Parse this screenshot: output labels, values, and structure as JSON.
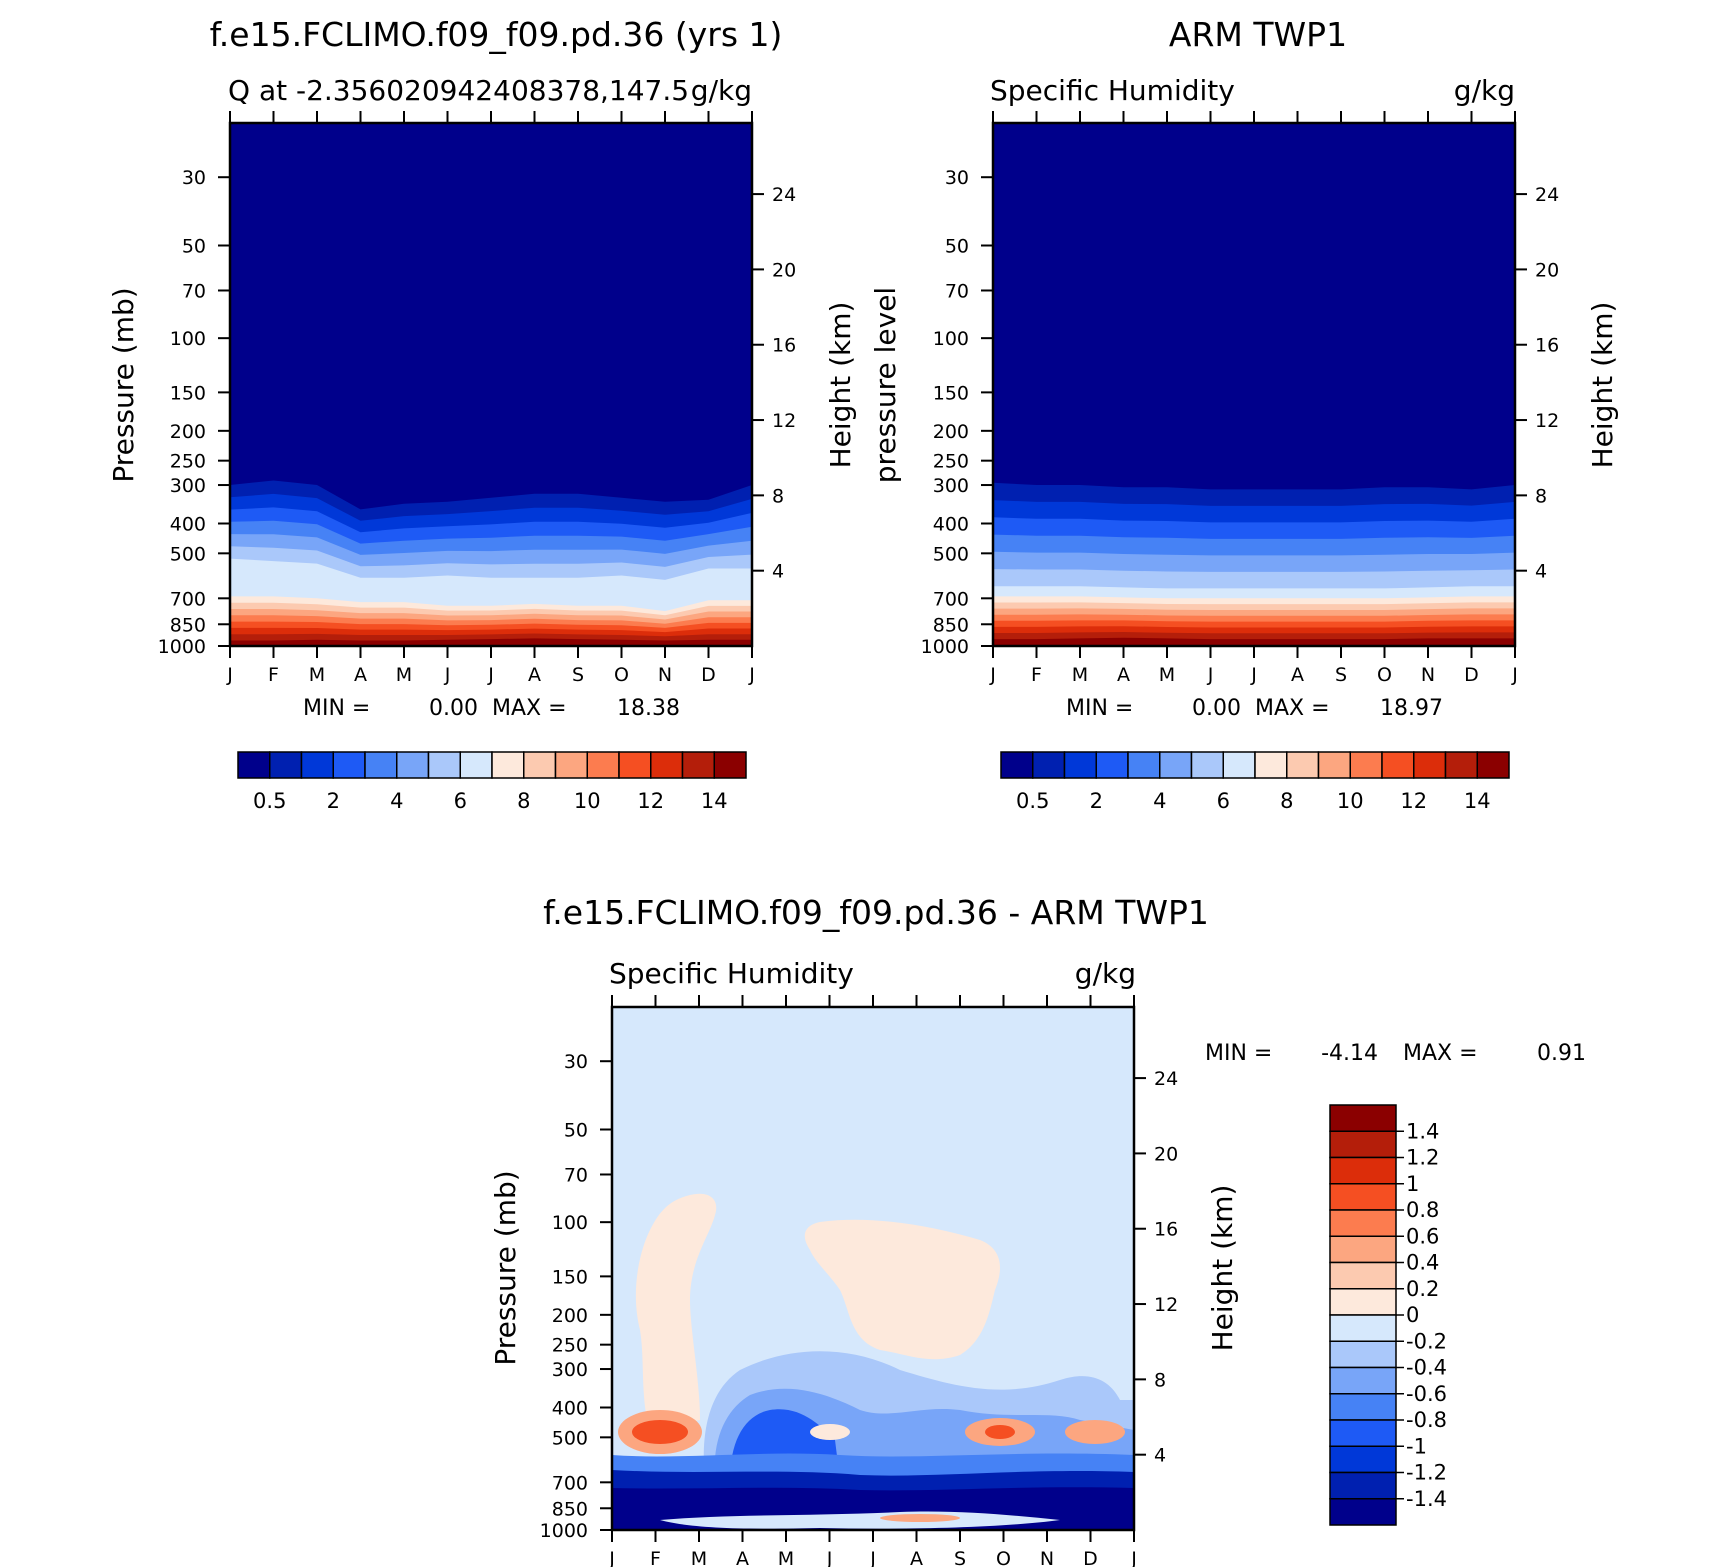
{
  "chart_data": [
    {
      "id": "model",
      "type": "heatmap",
      "title": "f.e15.FCLIMO.f09_f09.pd.36 (yrs 1)",
      "subtitle_left": "Q at -2.356020942408378,147.5",
      "subtitle_right": "g/kg",
      "ylabel": "Pressure (mb)",
      "y2label": "Height (km)",
      "x_ticks": [
        "J",
        "F",
        "M",
        "A",
        "M",
        "J",
        "J",
        "A",
        "S",
        "O",
        "N",
        "D",
        "J"
      ],
      "p_ticks": [
        "30",
        "50",
        "70",
        "100",
        "150",
        "200",
        "250",
        "300",
        "400",
        "500",
        "700",
        "850",
        "1000"
      ],
      "p_values": [
        30,
        50,
        70,
        100,
        150,
        200,
        250,
        300,
        400,
        500,
        700,
        850,
        1000
      ],
      "p_range": [
        20,
        1000
      ],
      "h_ticks": [
        "24",
        "20",
        "16",
        "12",
        "8",
        "4"
      ],
      "h_values": [
        24,
        20,
        16,
        12,
        8,
        4
      ],
      "min_label": "MIN =",
      "min_value": "0.00",
      "max_label": "MAX =",
      "max_value": "18.38",
      "colorbar_labels": [
        "0.5",
        "2",
        "4",
        "6",
        "8",
        "10",
        "12",
        "14"
      ],
      "months_boundary_p": {
        "below_0_5": [
          300,
          290,
          300,
          360,
          345,
          340,
          330,
          320,
          320,
          330,
          340,
          335,
          300
        ],
        "below_6": [
          520,
          530,
          540,
          600,
          600,
          590,
          600,
          600,
          600,
          590,
          610,
          560,
          560
        ],
        "below_7_5": [
          690,
          690,
          700,
          720,
          720,
          740,
          740,
          730,
          740,
          740,
          770,
          710,
          710
        ],
        "below_14": [
          960,
          960,
          955,
          960,
          960,
          955,
          950,
          945,
          950,
          955,
          960,
          955,
          955
        ]
      }
    },
    {
      "id": "obs",
      "type": "heatmap",
      "title": "ARM TWP1",
      "subtitle_left": "Specific Humidity",
      "subtitle_right": "g/kg",
      "ylabel": "pressure level",
      "y2label": "Height (km)",
      "x_ticks": [
        "J",
        "F",
        "M",
        "A",
        "M",
        "J",
        "J",
        "A",
        "S",
        "O",
        "N",
        "D",
        "J"
      ],
      "p_ticks": [
        "30",
        "50",
        "70",
        "100",
        "150",
        "200",
        "250",
        "300",
        "400",
        "500",
        "700",
        "850",
        "1000"
      ],
      "p_values": [
        30,
        50,
        70,
        100,
        150,
        200,
        250,
        300,
        400,
        500,
        700,
        850,
        1000
      ],
      "p_range": [
        20,
        1000
      ],
      "h_ticks": [
        "24",
        "20",
        "16",
        "12",
        "8",
        "4"
      ],
      "h_values": [
        24,
        20,
        16,
        12,
        8,
        4
      ],
      "min_label": "MIN =",
      "min_value": "0.00",
      "max_label": "MAX =",
      "max_value": "18.97",
      "colorbar_labels": [
        "0.5",
        "2",
        "4",
        "6",
        "8",
        "10",
        "12",
        "14"
      ],
      "months_boundary_p": {
        "below_0_5": [
          295,
          300,
          300,
          305,
          305,
          310,
          310,
          310,
          310,
          305,
          305,
          310,
          300
        ],
        "below_6": [
          640,
          640,
          640,
          645,
          650,
          650,
          650,
          650,
          650,
          650,
          645,
          640,
          640
        ],
        "below_7_5": [
          690,
          690,
          690,
          695,
          700,
          700,
          700,
          700,
          700,
          700,
          695,
          690,
          690
        ],
        "below_14": [
          950,
          950,
          945,
          940,
          945,
          950,
          950,
          950,
          950,
          950,
          945,
          945,
          945
        ]
      }
    },
    {
      "id": "diff",
      "type": "heatmap",
      "title": "f.e15.FCLIMO.f09_f09.pd.36 - ARM TWP1",
      "subtitle_left": "Specific Humidity",
      "subtitle_right": "g/kg",
      "ylabel": "Pressure (mb)",
      "y2label": "Height (km)",
      "x_ticks": [
        "J",
        "F",
        "M",
        "A",
        "M",
        "J",
        "J",
        "A",
        "S",
        "O",
        "N",
        "D",
        "J"
      ],
      "p_ticks": [
        "30",
        "50",
        "70",
        "100",
        "150",
        "200",
        "250",
        "300",
        "400",
        "500",
        "700",
        "850",
        "1000"
      ],
      "p_values": [
        30,
        50,
        70,
        100,
        150,
        200,
        250,
        300,
        400,
        500,
        700,
        850,
        1000
      ],
      "p_range": [
        20,
        1000
      ],
      "h_ticks": [
        "24",
        "20",
        "16",
        "12",
        "8",
        "4"
      ],
      "h_values": [
        24,
        20,
        16,
        12,
        8,
        4
      ],
      "min_label": "MIN =",
      "min_value": "-4.14",
      "max_label": "MAX =",
      "max_value": "0.91",
      "colorbar_labels": [
        "1.4",
        "1.2",
        "1",
        "0.8",
        "0.6",
        "0.4",
        "0.2",
        "0",
        "-0.2",
        "-0.4",
        "-0.6",
        "-0.8",
        "-1",
        "-1.2",
        "-1.4"
      ]
    }
  ],
  "colors": {
    "q_levels": [
      "#00008b",
      "#0020b0",
      "#0038d8",
      "#1e5af5",
      "#4682f5",
      "#78a5f8",
      "#aac8fa",
      "#d6e8fc",
      "#fde9dc",
      "#fccab0",
      "#fca680",
      "#fc7c4f",
      "#f54f22",
      "#dc2d0a",
      "#b41e0a",
      "#8b0000"
    ],
    "diff_levels": [
      "#8b0000",
      "#b41e0a",
      "#dc2d0a",
      "#f54f22",
      "#fc7c4f",
      "#fca680",
      "#fccab0",
      "#fde9dc",
      "#d6e8fc",
      "#aac8fa",
      "#78a5f8",
      "#4682f5",
      "#1e5af5",
      "#0038d8",
      "#0020b0",
      "#00008b"
    ]
  }
}
